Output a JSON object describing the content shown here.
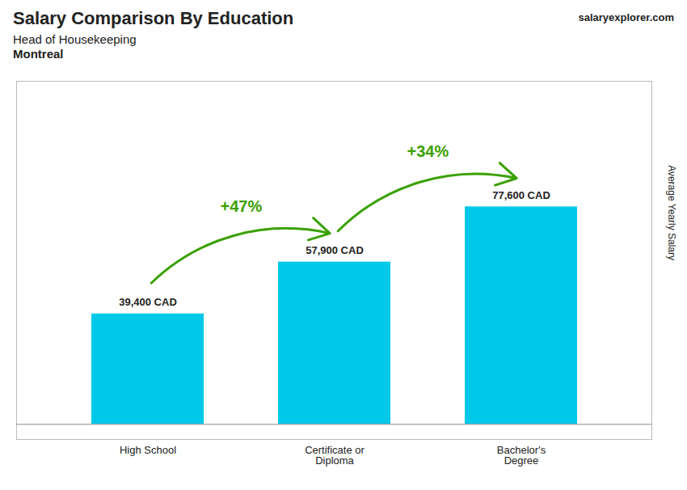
{
  "chart_data": {
    "type": "bar",
    "title": "Salary Comparison By Education",
    "subtitle": [
      "Head of Housekeeping",
      "Montreal"
    ],
    "watermark": [
      "salary",
      "explorer.com"
    ],
    "ylabel": "Average Yearly Salary",
    "categories": [
      "High School",
      "Certificate or\nDiploma",
      "Bachelor's\nDegree"
    ],
    "values": [
      39400,
      57900,
      77600
    ],
    "value_labels": [
      "39,400 CAD",
      "57,900 CAD",
      "77,600 CAD"
    ],
    "data_labels": true,
    "color": "#00c8e8",
    "ylim": [
      -5400,
      122400
    ],
    "tick_labels": "x",
    "grid": false,
    "annotations": [
      {
        "text": "+47%",
        "from": "High School",
        "to": "Certificate or\nDiploma"
      },
      {
        "text": "+34%",
        "from": "Certificate or\nDiploma",
        "to": "Bachelor's\nDegree"
      }
    ]
  }
}
